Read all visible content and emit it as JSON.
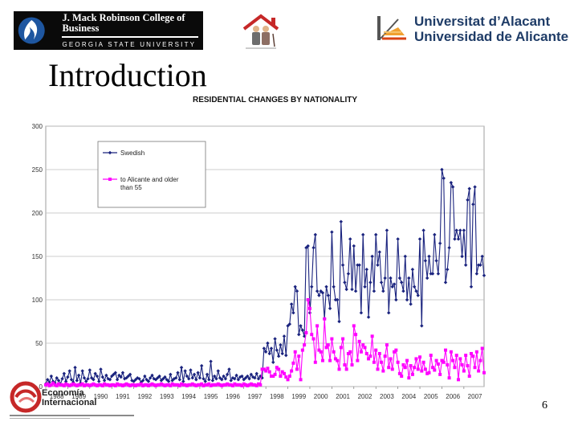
{
  "header": {
    "gsu_logo": {
      "line1": "J. Mack Robinson College of Business",
      "line2": "GEORGIA STATE UNIVERSITY"
    },
    "ua_logo": {
      "line1": "Universitat d’Alacant",
      "line2": "Universidad de Alicante"
    },
    "house_logo": "elderly-couple-house-logo"
  },
  "slide": {
    "title": "Introduction",
    "page_number": "6"
  },
  "footer": {
    "ei_logo": {
      "line1": "Economía",
      "line2": "Internacional"
    }
  },
  "chart_data": {
    "type": "line",
    "title": "RESIDENTIAL CHANGES BY NATIONALITY",
    "xlabel": "",
    "ylabel": "",
    "ylim": [
      0,
      300
    ],
    "yticks": [
      "0",
      "50",
      "100",
      "150",
      "200",
      "250",
      "300"
    ],
    "xticks": [
      "1988",
      "1989",
      "1990",
      "1991",
      "1992",
      "1993",
      "1994",
      "1995",
      "1996",
      "1997",
      "1998",
      "1999",
      "2000",
      "2001",
      "2002",
      "2003",
      "2004",
      "2005",
      "2006",
      "2007"
    ],
    "x_note": "monthly values, Jan 1988 - Dec 2007",
    "legend_position": "top-left",
    "colors": {
      "swedish": "#1a237e",
      "alicante55": "#ff00ff"
    },
    "series": [
      {
        "name": "Swedish",
        "values": [
          3,
          8,
          5,
          12,
          6,
          4,
          10,
          7,
          3,
          9,
          15,
          6,
          11,
          18,
          8,
          5,
          22,
          7,
          13,
          4,
          18,
          10,
          6,
          9,
          19,
          10,
          8,
          15,
          12,
          6,
          20,
          11,
          7,
          13,
          9,
          8,
          12,
          14,
          16,
          8,
          13,
          11,
          16,
          9,
          10,
          12,
          14,
          7,
          6,
          8,
          10,
          9,
          5,
          7,
          12,
          8,
          6,
          10,
          13,
          9,
          8,
          10,
          12,
          7,
          9,
          11,
          8,
          6,
          14,
          7,
          9,
          10,
          16,
          8,
          22,
          6,
          18,
          12,
          9,
          19,
          10,
          14,
          8,
          16,
          10,
          24,
          9,
          6,
          14,
          8,
          29,
          7,
          12,
          9,
          18,
          10,
          8,
          12,
          9,
          14,
          20,
          7,
          10,
          9,
          13,
          8,
          11,
          12,
          8,
          10,
          12,
          9,
          14,
          11,
          10,
          15,
          9,
          12,
          10,
          44,
          40,
          50,
          38,
          44,
          28,
          55,
          42,
          35,
          48,
          38,
          58,
          36,
          70,
          72,
          95,
          85,
          115,
          110,
          60,
          70,
          65,
          58,
          160,
          162,
          85,
          115,
          160,
          175,
          110,
          105,
          110,
          108,
          78,
          115,
          105,
          90,
          178,
          115,
          100,
          100,
          75,
          190,
          140,
          120,
          112,
          130,
          170,
          112,
          162,
          110,
          140,
          140,
          85,
          175,
          115,
          135,
          80,
          120,
          150,
          110,
          175,
          140,
          155,
          120,
          110,
          125,
          180,
          85,
          125,
          115,
          118,
          100,
          170,
          125,
          120,
          110,
          150,
          100,
          125,
          95,
          135,
          115,
          110,
          105,
          170,
          70,
          180,
          145,
          125,
          150,
          130,
          130,
          175,
          145,
          130,
          165,
          250,
          240,
          120,
          135,
          160,
          235,
          230,
          170,
          180,
          170,
          180,
          150,
          180,
          140,
          215,
          228,
          115,
          210,
          230,
          130,
          140,
          140,
          150,
          128
        ]
      },
      {
        "name": "to Alicante and older than 55",
        "values": [
          2,
          3,
          1,
          2,
          4,
          2,
          1,
          3,
          2,
          2,
          1,
          3,
          2,
          1,
          2,
          3,
          2,
          1,
          2,
          2,
          3,
          1,
          2,
          2,
          1,
          2,
          3,
          2,
          1,
          2,
          2,
          1,
          3,
          2,
          2,
          1,
          2,
          2,
          1,
          3,
          2,
          2,
          1,
          2,
          3,
          2,
          1,
          2,
          2,
          1,
          2,
          2,
          3,
          1,
          2,
          2,
          1,
          2,
          3,
          2,
          1,
          2,
          2,
          3,
          2,
          1,
          2,
          2,
          1,
          3,
          2,
          2,
          2,
          1,
          3,
          2,
          2,
          1,
          2,
          2,
          3,
          2,
          1,
          2,
          2,
          3,
          1,
          2,
          2,
          3,
          1,
          2,
          2,
          2,
          3,
          2,
          1,
          2,
          2,
          3,
          2,
          2,
          1,
          3,
          2,
          2,
          2,
          1,
          3,
          2,
          1,
          2,
          3,
          2,
          2,
          1,
          3,
          2,
          20,
          20,
          18,
          21,
          17,
          12,
          12,
          14,
          22,
          20,
          12,
          17,
          15,
          11,
          8,
          12,
          18,
          27,
          40,
          20,
          35,
          8,
          42,
          48,
          62,
          100,
          90,
          60,
          55,
          28,
          70,
          42,
          40,
          30,
          78,
          45,
          48,
          30,
          55,
          40,
          32,
          30,
          20,
          45,
          55,
          25,
          20,
          38,
          40,
          25,
          70,
          60,
          30,
          52,
          40,
          48,
          45,
          38,
          32,
          35,
          58,
          28,
          42,
          20,
          38,
          28,
          18,
          35,
          48,
          22,
          32,
          20,
          40,
          42,
          28,
          15,
          12,
          25,
          22,
          30,
          10,
          24,
          14,
          22,
          32,
          20,
          34,
          18,
          28,
          20,
          15,
          16,
          36,
          22,
          19,
          30,
          26,
          14,
          30,
          28,
          42,
          25,
          10,
          40,
          30,
          22,
          36,
          8,
          32,
          25,
          18,
          36,
          24,
          12,
          38,
          35,
          22,
          40,
          18,
          30,
          44,
          16
        ]
      }
    ]
  }
}
